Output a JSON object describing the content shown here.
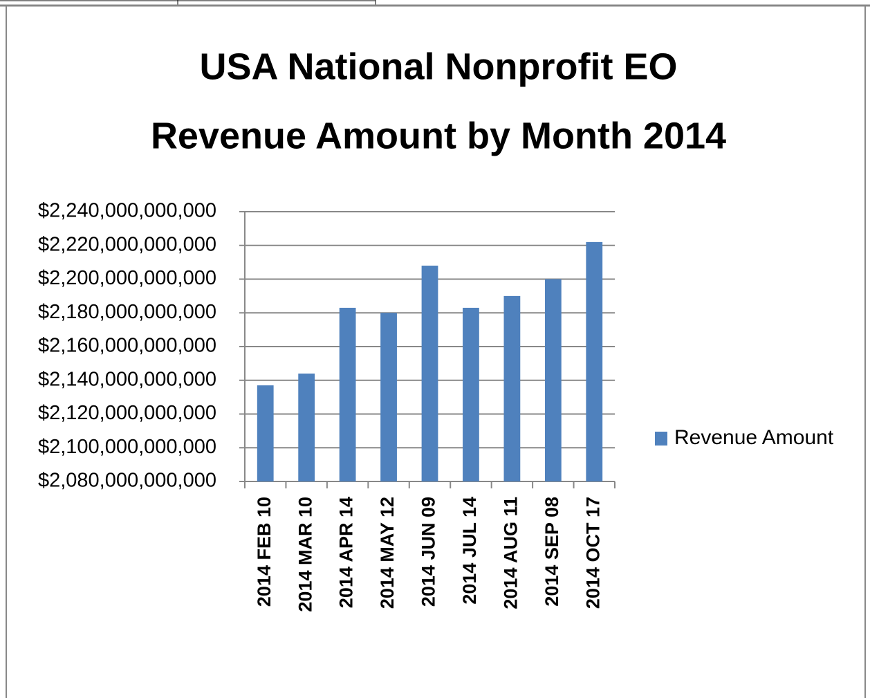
{
  "chart_data": {
    "type": "bar",
    "title": [
      "USA National Nonprofit EO",
      "Revenue Amount by Month 2014"
    ],
    "categories": [
      "2014 FEB 10",
      "2014 MAR 10",
      "2014 APR 14",
      "2014 MAY 12",
      "2014 JUN 09",
      "2014 JUL 14",
      "2014 AUG 11",
      "2014 SEP 08",
      "2014 OCT 17"
    ],
    "series": [
      {
        "name": "Revenue Amount",
        "color": "#4f81bd",
        "values": [
          2137000000000,
          2144000000000,
          2183000000000,
          2180000000000,
          2208000000000,
          2183000000000,
          2190000000000,
          2200000000000,
          2222000000000
        ]
      }
    ],
    "ylim": [
      2080000000000,
      2240000000000
    ],
    "yticks": [
      {
        "value": 2080000000000,
        "label": "$2,080,000,000,000"
      },
      {
        "value": 2100000000000,
        "label": "$2,100,000,000,000"
      },
      {
        "value": 2120000000000,
        "label": "$2,120,000,000,000"
      },
      {
        "value": 2140000000000,
        "label": "$2,140,000,000,000"
      },
      {
        "value": 2160000000000,
        "label": "$2,160,000,000,000"
      },
      {
        "value": 2180000000000,
        "label": "$2,180,000,000,000"
      },
      {
        "value": 2200000000000,
        "label": "$2,200,000,000,000"
      },
      {
        "value": 2220000000000,
        "label": "$2,220,000,000,000"
      },
      {
        "value": 2240000000000,
        "label": "$2,240,000,000,000"
      }
    ],
    "grid": true,
    "legend": "right"
  }
}
